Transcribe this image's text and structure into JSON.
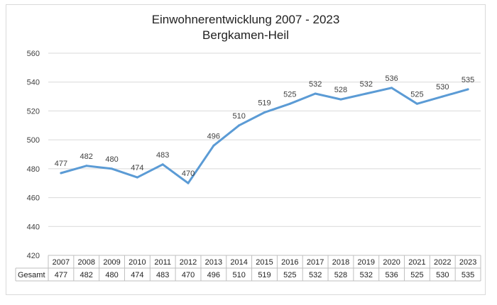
{
  "chart_data": {
    "type": "line",
    "title": "Einwohnerentwicklung 2007 - 2023",
    "subtitle": "Bergkamen-Heil",
    "categories": [
      "2007",
      "2008",
      "2009",
      "2010",
      "2011",
      "2012",
      "2013",
      "2014",
      "2015",
      "2016",
      "2017",
      "2018",
      "2019",
      "2020",
      "2021",
      "2022",
      "2023"
    ],
    "series": [
      {
        "name": "Gesamt",
        "values": [
          477,
          482,
          480,
          474,
          483,
          470,
          496,
          510,
          519,
          525,
          532,
          528,
          532,
          536,
          525,
          530,
          535
        ],
        "color": "#5b9bd5"
      }
    ],
    "ylim": [
      420,
      560
    ],
    "yticks": [
      "560",
      "540",
      "520",
      "500",
      "480",
      "460",
      "440",
      "420"
    ],
    "grid": true,
    "legend": "data-table",
    "table_row_label": "Gesamt"
  }
}
